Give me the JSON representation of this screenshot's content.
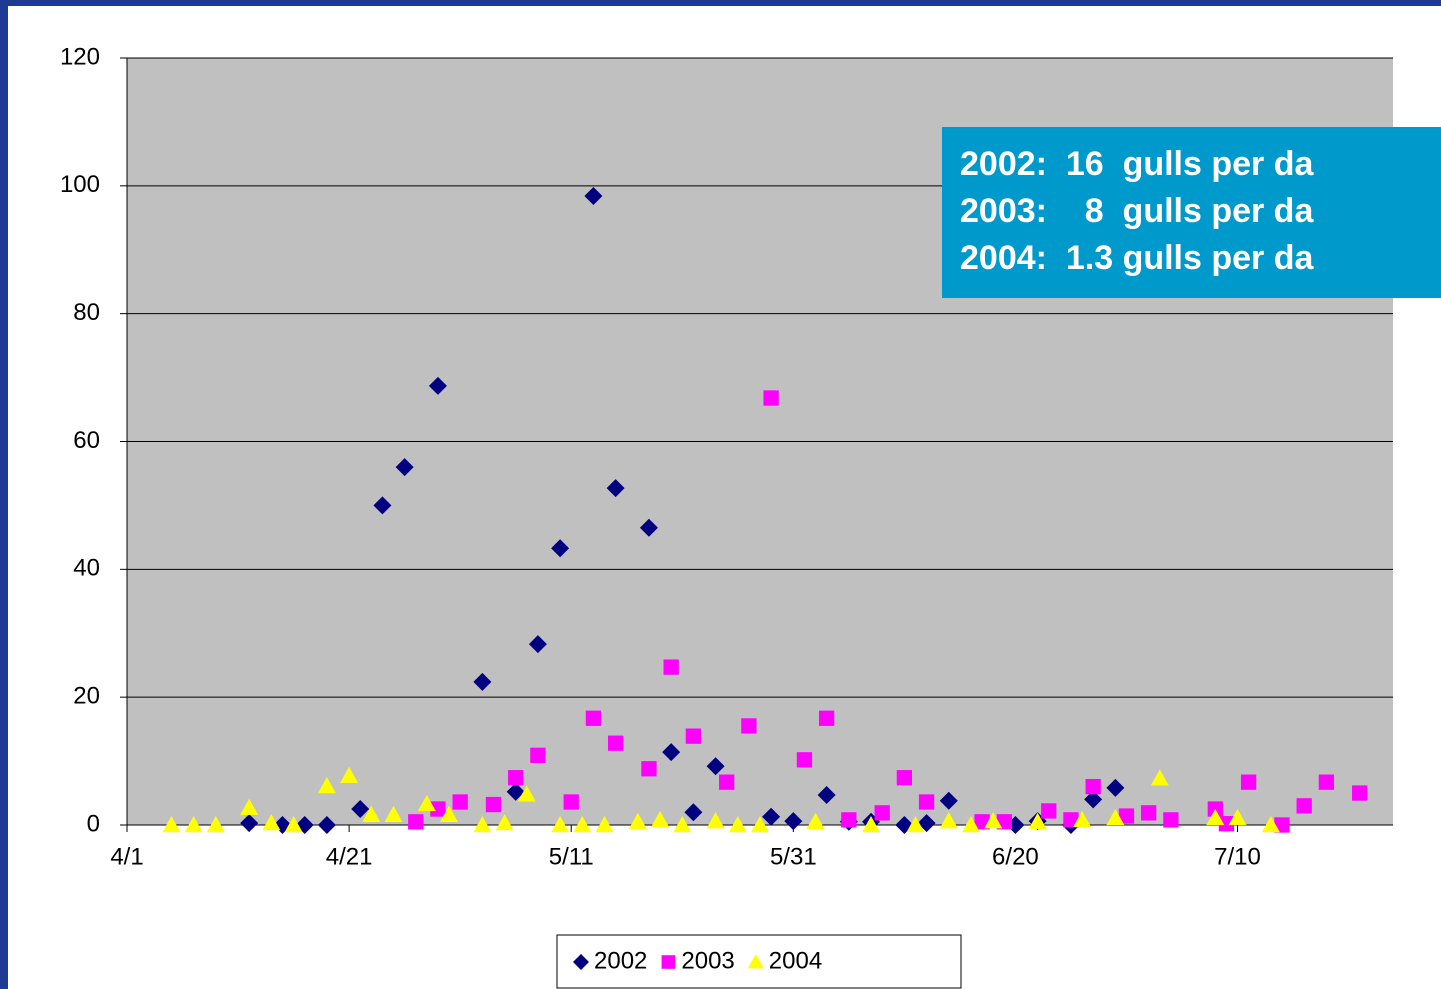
{
  "chart_data": {
    "type": "scatter",
    "annotations": [
      "2002:  16  gulls per da",
      "2003:    8  gulls per da",
      "2004:  1.3 gulls per da"
    ],
    "xlim": [
      "4/1",
      "7/24"
    ],
    "xticks": [
      "4/1",
      "4/21",
      "5/11",
      "5/31",
      "6/20",
      "7/10"
    ],
    "ylim": [
      0,
      120
    ],
    "yticks": [
      0,
      20,
      40,
      60,
      80,
      100,
      120
    ],
    "grid": true,
    "legend": "bottom",
    "series": [
      {
        "name": "2002",
        "color": "#000080",
        "marker": "diamond",
        "x": [
          "4/12",
          "4/15",
          "4/17",
          "4/19",
          "4/22",
          "4/24",
          "4/26",
          "4/29",
          "5/3",
          "5/6",
          "5/8",
          "5/10",
          "5/13",
          "5/15",
          "5/18",
          "5/20",
          "5/22",
          "5/24",
          "5/29",
          "5/31",
          "6/3",
          "6/5",
          "6/7",
          "6/10",
          "6/12",
          "6/14",
          "6/20",
          "6/22",
          "6/25",
          "6/27",
          "6/29"
        ],
        "values": [
          0.3,
          0,
          0,
          0,
          2.5,
          50,
          56,
          68.7,
          22.4,
          5.2,
          28.3,
          43.3,
          98.4,
          52.7,
          46.5,
          11.4,
          2,
          9.2,
          1.3,
          0.6,
          4.7,
          0.5,
          0.5,
          0,
          0.3,
          3.8,
          0,
          0.6,
          0,
          4,
          5.8
        ]
      },
      {
        "name": "2003",
        "color": "#ff00ff",
        "marker": "square",
        "x": [
          "4/27",
          "4/29",
          "5/1",
          "5/4",
          "5/6",
          "5/8",
          "5/11",
          "5/13",
          "5/15",
          "5/18",
          "5/20",
          "5/22",
          "5/25",
          "5/27",
          "5/29",
          "6/1",
          "6/3",
          "6/5",
          "6/8",
          "6/10",
          "6/12",
          "6/17",
          "6/19",
          "6/23",
          "6/25",
          "6/27",
          "6/30",
          "7/2",
          "7/4",
          "7/8",
          "7/9",
          "7/11",
          "7/14",
          "7/16",
          "7/18",
          "7/21"
        ],
        "values": [
          0.5,
          2.5,
          3.6,
          3.2,
          7.4,
          10.9,
          3.6,
          16.7,
          12.8,
          8.8,
          24.7,
          13.9,
          6.7,
          15.5,
          66.8,
          10.2,
          16.7,
          0.8,
          1.9,
          7.4,
          3.6,
          0.5,
          0.5,
          2.2,
          0.8,
          6,
          1.4,
          1.9,
          0.8,
          2.5,
          0.2,
          6.7,
          0,
          3,
          6.7,
          5
        ]
      },
      {
        "name": "2004",
        "color": "#ffff00",
        "marker": "triangle",
        "x": [
          "4/5",
          "4/7",
          "4/9",
          "4/12",
          "4/14",
          "4/16",
          "4/19",
          "4/21",
          "4/23",
          "4/25",
          "4/28",
          "4/30",
          "5/3",
          "5/5",
          "5/7",
          "5/10",
          "5/12",
          "5/14",
          "5/17",
          "5/19",
          "5/21",
          "5/24",
          "5/26",
          "5/28",
          "6/2",
          "6/7",
          "6/11",
          "6/14",
          "6/16",
          "6/18",
          "6/22",
          "6/26",
          "6/29",
          "7/3",
          "7/8",
          "7/10",
          "7/13"
        ],
        "values": [
          0,
          0,
          0,
          2.7,
          0.3,
          0,
          6.1,
          7.7,
          1.6,
          1.6,
          3.3,
          1.6,
          0,
          0.3,
          4.8,
          0,
          0,
          0,
          0.5,
          0.8,
          0,
          0.6,
          0,
          0,
          0.5,
          0,
          0,
          0.6,
          0,
          0.6,
          0.5,
          0.8,
          1.1,
          7.3,
          1.1,
          1.1,
          0
        ]
      }
    ]
  }
}
